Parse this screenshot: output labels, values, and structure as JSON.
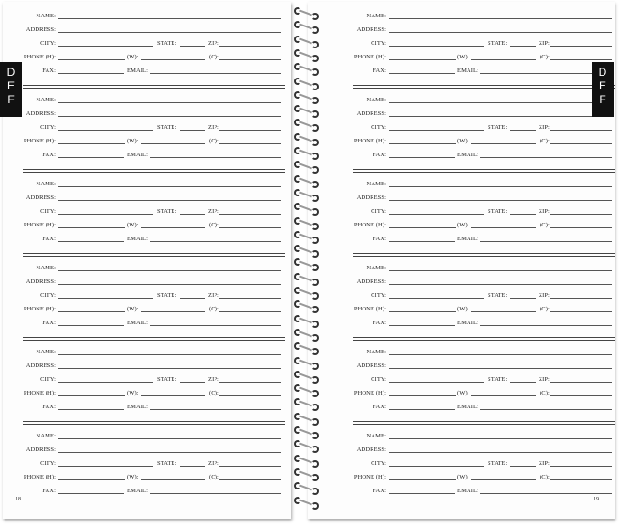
{
  "labels": {
    "name": "NAME:",
    "address": "ADDRESS:",
    "city": "CITY:",
    "state": "STATE:",
    "zip": "ZIP:",
    "phone_h": "PHONE (H):",
    "phone_w": "(W):",
    "phone_c": "(C):",
    "fax": "FAX:",
    "email": "EMAIL:"
  },
  "pages": [
    {
      "side": "left",
      "number": "18",
      "tab": "DEF",
      "entries": 6
    },
    {
      "side": "right",
      "number": "19",
      "tab": "DEF",
      "entries": 6
    }
  ],
  "colors": {
    "tab": "#111111",
    "rule": "#555555"
  }
}
